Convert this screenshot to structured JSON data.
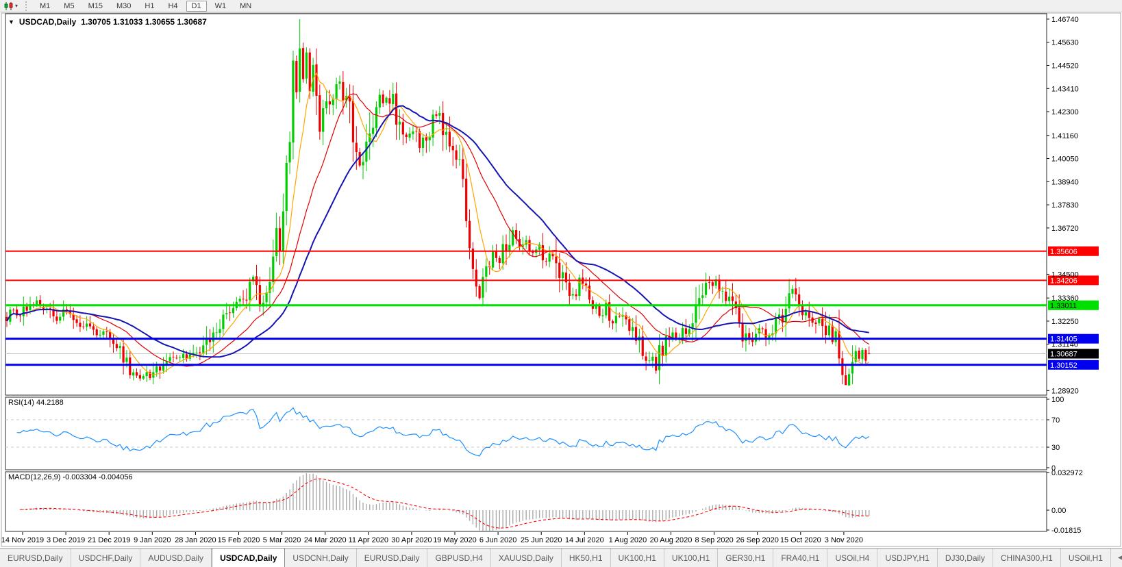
{
  "toolbar": {
    "chart_tool_icon": "candlestick-style-icon",
    "dropdown_caret": "▾",
    "timeframes": [
      "M1",
      "M5",
      "M15",
      "M30",
      "H1",
      "H4",
      "D1",
      "W1",
      "MN"
    ],
    "active_timeframe": "D1"
  },
  "window": {
    "menu_triangle": "▼",
    "title_symbol": "USDCAD,Daily",
    "ohlc_line": "1.30705 1.31033 1.30655 1.30687"
  },
  "chart_data": {
    "type": "candlestick",
    "symbol": "USDCAD",
    "timeframe": "Daily",
    "last_candle": {
      "open": 1.30705,
      "high": 1.31033,
      "low": 1.30655,
      "close": 1.30687
    },
    "ylim": [
      1.287,
      1.47
    ],
    "price_axis_ticks": [
      "1.46740",
      "1.45630",
      "1.44520",
      "1.43410",
      "1.42300",
      "1.41160",
      "1.40050",
      "1.38940",
      "1.37830",
      "1.36720",
      "1.34500",
      "1.33360",
      "1.32250",
      "1.31140",
      "1.28920"
    ],
    "date_axis_ticks": [
      "14 Nov 2019",
      "3 Dec 2019",
      "21 Dec 2019",
      "9 Jan 2020",
      "28 Jan 2020",
      "15 Feb 2020",
      "5 Mar 2020",
      "24 Mar 2020",
      "11 Apr 2020",
      "30 Apr 2020",
      "19 May 2020",
      "6 Jun 2020",
      "25 Jun 2020",
      "14 Jul 2020",
      "1 Aug 2020",
      "20 Aug 2020",
      "8 Sep 2020",
      "26 Sep 2020",
      "15 Oct 2020",
      "3 Nov 2020"
    ],
    "hlines": [
      {
        "price": "1.35606",
        "color": "#ff0000",
        "text": "#ffffff",
        "width": 2
      },
      {
        "price": "1.34206",
        "color": "#ff0000",
        "text": "#ffffff",
        "width": 2
      },
      {
        "price": "1.33011",
        "color": "#00e000",
        "text": "#000000",
        "width": 3
      },
      {
        "price": "1.31405",
        "color": "#0000ee",
        "text": "#ffffff",
        "width": 3
      },
      {
        "price": "1.30152",
        "color": "#0000ee",
        "text": "#ffffff",
        "width": 3
      }
    ],
    "current_price": {
      "value": "1.30687",
      "badge_color": "#000000",
      "text": "#ffffff",
      "line_color": "#c8c8c8"
    },
    "candle_colors": {
      "up": "#00cc00",
      "down": "#ee0000"
    },
    "moving_averages": [
      {
        "name": "fast",
        "period": 8,
        "color": "#ffa500",
        "width": 1.2
      },
      {
        "name": "medium",
        "period": 20,
        "color": "#e00000",
        "width": 1.2
      },
      {
        "name": "slow",
        "period": 34,
        "color": "#1414b4",
        "width": 2
      }
    ],
    "peak_high": 1.4674,
    "floor_low": 1.2922,
    "close_path_anchors": [
      [
        0,
        1.3242
      ],
      [
        2,
        1.3268
      ],
      [
        4,
        1.3252
      ],
      [
        6,
        1.329
      ],
      [
        8,
        1.3312
      ],
      [
        10,
        1.3292
      ],
      [
        12,
        1.3305
      ],
      [
        14,
        1.326
      ],
      [
        16,
        1.3232
      ],
      [
        18,
        1.327
      ],
      [
        20,
        1.3242
      ],
      [
        22,
        1.321
      ],
      [
        24,
        1.3195
      ],
      [
        26,
        1.3168
      ],
      [
        28,
        1.3175
      ],
      [
        30,
        1.315
      ],
      [
        32,
        1.3122
      ],
      [
        34,
        1.3088
      ],
      [
        36,
        1.3022
      ],
      [
        37,
        1.298
      ],
      [
        39,
        1.2958
      ],
      [
        41,
        1.2975
      ],
      [
        43,
        1.2948
      ],
      [
        45,
        1.2988
      ],
      [
        47,
        1.3018
      ],
      [
        49,
        1.305
      ],
      [
        51,
        1.3042
      ],
      [
        53,
        1.3068
      ],
      [
        55,
        1.3055
      ],
      [
        57,
        1.308
      ],
      [
        59,
        1.3105
      ],
      [
        61,
        1.315
      ],
      [
        63,
        1.3195
      ],
      [
        65,
        1.324
      ],
      [
        67,
        1.3285
      ],
      [
        69,
        1.331
      ],
      [
        71,
        1.333
      ],
      [
        73,
        1.3392
      ],
      [
        74,
        1.3435
      ],
      [
        75,
        1.3388
      ],
      [
        76,
        1.334
      ],
      [
        77,
        1.3318
      ],
      [
        78,
        1.3372
      ],
      [
        79,
        1.342
      ],
      [
        80,
        1.3522
      ],
      [
        81,
        1.3655
      ],
      [
        82,
        1.36
      ],
      [
        83,
        1.3748
      ],
      [
        84,
        1.3918
      ],
      [
        85,
        1.4025
      ],
      [
        86,
        1.4488
      ],
      [
        87,
        1.4352
      ],
      [
        88,
        1.456
      ],
      [
        89,
        1.4395
      ],
      [
        90,
        1.4508
      ],
      [
        91,
        1.433
      ],
      [
        92,
        1.4432
      ],
      [
        93,
        1.4272
      ],
      [
        94,
        1.416
      ],
      [
        96,
        1.4245
      ],
      [
        98,
        1.4312
      ],
      [
        100,
        1.4355
      ],
      [
        102,
        1.4268
      ],
      [
        104,
        1.4152
      ],
      [
        105,
        1.399
      ],
      [
        106,
        1.3955
      ],
      [
        108,
        1.4048
      ],
      [
        110,
        1.4165
      ],
      [
        112,
        1.4262
      ],
      [
        114,
        1.431
      ],
      [
        116,
        1.4268
      ],
      [
        118,
        1.4165
      ],
      [
        120,
        1.4098
      ],
      [
        122,
        1.4135
      ],
      [
        124,
        1.406
      ],
      [
        126,
        1.4115
      ],
      [
        128,
        1.4185
      ],
      [
        130,
        1.4205
      ],
      [
        132,
        1.412
      ],
      [
        134,
        1.4048
      ],
      [
        136,
        1.3965
      ],
      [
        137,
        1.3868
      ],
      [
        138,
        1.3762
      ],
      [
        139,
        1.3645
      ],
      [
        140,
        1.3512
      ],
      [
        141,
        1.3418
      ],
      [
        142,
        1.3338
      ],
      [
        143,
        1.3425
      ],
      [
        144,
        1.3488
      ],
      [
        146,
        1.3552
      ],
      [
        148,
        1.3522
      ],
      [
        150,
        1.3588
      ],
      [
        152,
        1.3672
      ],
      [
        154,
        1.358
      ],
      [
        156,
        1.3608
      ],
      [
        158,
        1.3552
      ],
      [
        160,
        1.3585
      ],
      [
        162,
        1.3518
      ],
      [
        164,
        1.3548
      ],
      [
        166,
        1.3458
      ],
      [
        168,
        1.3388
      ],
      [
        170,
        1.3355
      ],
      [
        172,
        1.342
      ],
      [
        174,
        1.3372
      ],
      [
        176,
        1.3305
      ],
      [
        178,
        1.3262
      ],
      [
        180,
        1.3295
      ],
      [
        182,
        1.3235
      ],
      [
        184,
        1.3265
      ],
      [
        186,
        1.3215
      ],
      [
        188,
        1.3172
      ],
      [
        190,
        1.3112
      ],
      [
        192,
        1.3058
      ],
      [
        194,
        1.3025
      ],
      [
        195,
        1.2998
      ],
      [
        196,
        1.3052
      ],
      [
        198,
        1.3125
      ],
      [
        200,
        1.3165
      ],
      [
        202,
        1.3142
      ],
      [
        204,
        1.3185
      ],
      [
        206,
        1.3215
      ],
      [
        208,
        1.3312
      ],
      [
        210,
        1.3385
      ],
      [
        212,
        1.3402
      ],
      [
        213,
        1.3418
      ],
      [
        215,
        1.3382
      ],
      [
        217,
        1.3315
      ],
      [
        219,
        1.3242
      ],
      [
        221,
        1.3165
      ],
      [
        223,
        1.3122
      ],
      [
        225,
        1.3152
      ],
      [
        227,
        1.3188
      ],
      [
        229,
        1.3152
      ],
      [
        231,
        1.3212
      ],
      [
        233,
        1.3262
      ],
      [
        235,
        1.3342
      ],
      [
        236,
        1.3372
      ],
      [
        238,
        1.3302
      ],
      [
        240,
        1.3258
      ],
      [
        242,
        1.3215
      ],
      [
        244,
        1.3248
      ],
      [
        246,
        1.3192
      ],
      [
        248,
        1.3122
      ],
      [
        249,
        1.3152
      ],
      [
        250,
        1.3082
      ],
      [
        251,
        1.3012
      ],
      [
        252,
        1.2968
      ],
      [
        253,
        1.2938
      ],
      [
        254,
        1.3008
      ],
      [
        255,
        1.3068
      ],
      [
        256,
        1.3032
      ],
      [
        257,
        1.3075
      ],
      [
        258,
        1.3048
      ],
      [
        259,
        1.30687
      ]
    ]
  },
  "rsi": {
    "label": "RSI(14) 44.2188",
    "period": 14,
    "value": "44.2188",
    "line_color": "#1e90ff",
    "levels": [
      "100",
      "70",
      "30",
      "0"
    ],
    "dashed_levels": [
      "70",
      "30"
    ]
  },
  "macd": {
    "label": "MACD(12,26,9) -0.003304 -0.004056",
    "params": "12,26,9",
    "main_value": "-0.003304",
    "signal_value": "-0.004056",
    "axis_labels": [
      "0.032972",
      "0.00",
      "-0.01815"
    ],
    "histogram_color": "#ababab",
    "signal_color": "#ff0000"
  },
  "tabs": {
    "items": [
      {
        "label": "EURUSD,Daily",
        "active": false
      },
      {
        "label": "USDCHF,Daily",
        "active": false
      },
      {
        "label": "AUDUSD,Daily",
        "active": false
      },
      {
        "label": "USDCAD,Daily",
        "active": true
      },
      {
        "label": "USDCNH,Daily",
        "active": false
      },
      {
        "label": "EURUSD,Daily",
        "active": false
      },
      {
        "label": "GBPUSD,H4",
        "active": false
      },
      {
        "label": "XAUUSD,Daily",
        "active": false
      },
      {
        "label": "HK50,H1",
        "active": false
      },
      {
        "label": "UK100,H1",
        "active": false
      },
      {
        "label": "UK100,H1",
        "active": false
      },
      {
        "label": "GER30,H1",
        "active": false
      },
      {
        "label": "FRA40,H1",
        "active": false
      },
      {
        "label": "USOil,H4",
        "active": false
      },
      {
        "label": "USDJPY,H1",
        "active": false
      },
      {
        "label": "DJ30,Daily",
        "active": false
      },
      {
        "label": "CHINA300,H1",
        "active": false
      },
      {
        "label": "USOil,H1",
        "active": false
      }
    ],
    "scroll_left": "◀",
    "scroll_right": "▶"
  }
}
